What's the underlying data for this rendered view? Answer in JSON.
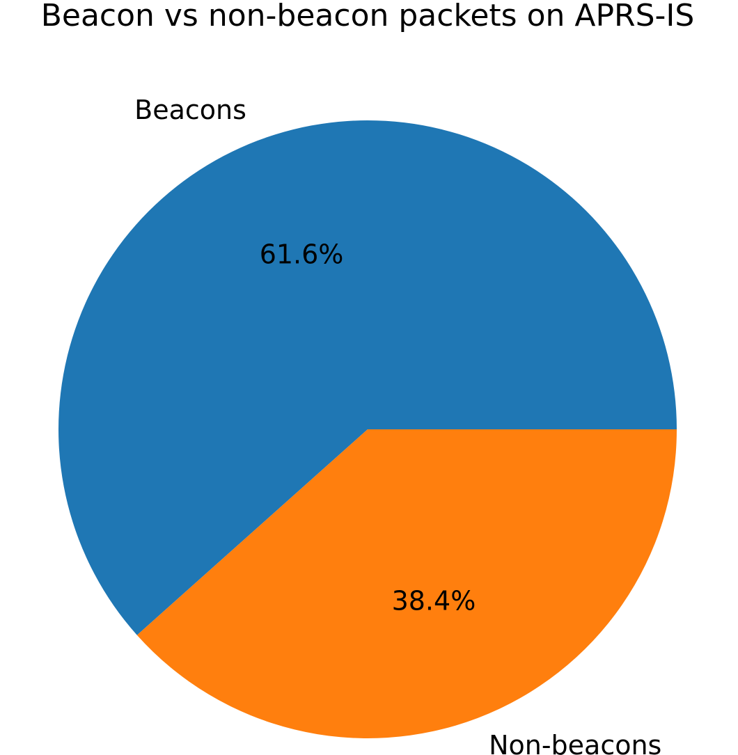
{
  "chart_data": {
    "type": "pie",
    "title": "Beacon vs non-beacon packets on APRS-IS",
    "slices": [
      {
        "label": "Beacons",
        "value": 61.6,
        "pct_label": "61.6%",
        "color": "#1f77b4"
      },
      {
        "label": "Non-beacons",
        "value": 38.4,
        "pct_label": "38.4%",
        "color": "#ff7f0e"
      }
    ],
    "start_angle_deg": 0,
    "direction": "counterclockwise",
    "legend": "none"
  }
}
